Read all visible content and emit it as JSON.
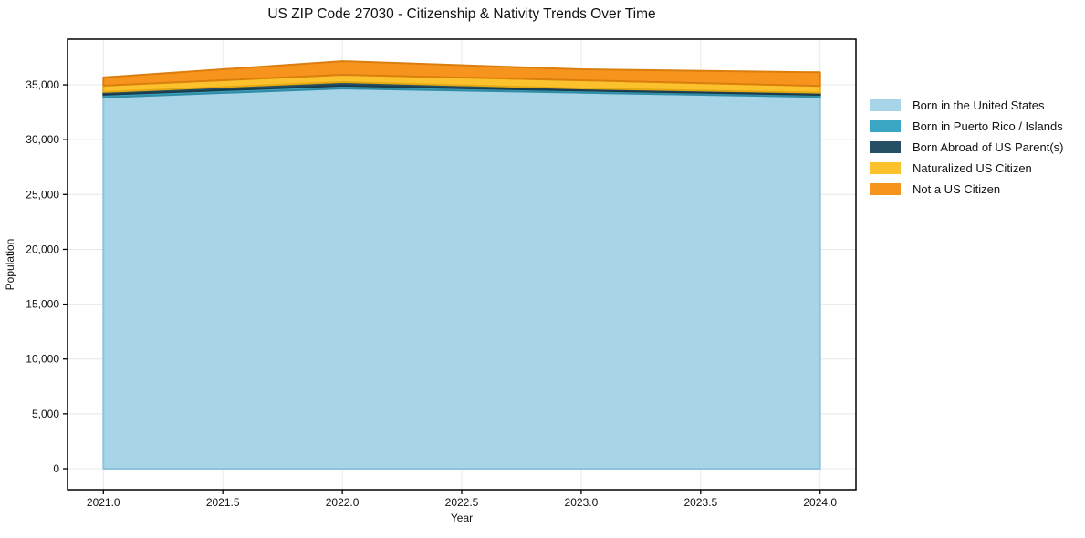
{
  "chart": {
    "title": "US ZIP Code 27030 - Citizenship & Nativity Trends Over Time",
    "xlabel": "Year",
    "ylabel": "Population"
  },
  "chart_data": {
    "type": "area",
    "stacked": true,
    "title": "US ZIP Code 27030 - Citizenship & Nativity Trends Over Time",
    "xlabel": "Year",
    "ylabel": "Population",
    "x": [
      2021,
      2022,
      2023,
      2024
    ],
    "series": [
      {
        "name": "Born in the United States",
        "color": "#a8d4e8",
        "edge_color": "#8ec3dd",
        "values": [
          33850,
          34670,
          34280,
          33900
        ]
      },
      {
        "name": "Born in Puerto Rico / Islands",
        "color": "#3ba6c3",
        "edge_color": "#318ca5",
        "values": [
          250,
          250,
          200,
          190
        ]
      },
      {
        "name": "Born Abroad of US Parent(s)",
        "color": "#254f63",
        "edge_color": "#1b3c4c",
        "values": [
          250,
          330,
          190,
          190
        ]
      },
      {
        "name": "Naturalized US Citizen",
        "color": "#fcc22d",
        "edge_color": "#e5a912",
        "values": [
          580,
          670,
          750,
          620
        ]
      },
      {
        "name": "Not a US Citizen",
        "color": "#f6941e",
        "edge_color": "#db7e0e",
        "values": [
          750,
          1240,
          1000,
          1240
        ]
      }
    ],
    "totals": [
      35680,
      37160,
      36420,
      36140
    ],
    "xlim": [
      2020.85,
      2024.15
    ],
    "ylim": [
      -1912,
      39160
    ],
    "xticks": {
      "values": [
        2021.0,
        2021.5,
        2022.0,
        2022.5,
        2023.0,
        2023.5,
        2024.0
      ],
      "labels": [
        "2021.0",
        "2021.5",
        "2022.0",
        "2022.5",
        "2023.0",
        "2023.5",
        "2024.0"
      ]
    },
    "yticks": {
      "values": [
        0,
        5000,
        10000,
        15000,
        20000,
        25000,
        30000,
        35000
      ],
      "labels": [
        "0",
        "5,000",
        "10,000",
        "15,000",
        "20,000",
        "25,000",
        "30,000",
        "35,000"
      ]
    },
    "grid": true,
    "grid_color": "#e8e8e8",
    "spine_color": "#000000",
    "legend_position": "right-of-plot"
  }
}
